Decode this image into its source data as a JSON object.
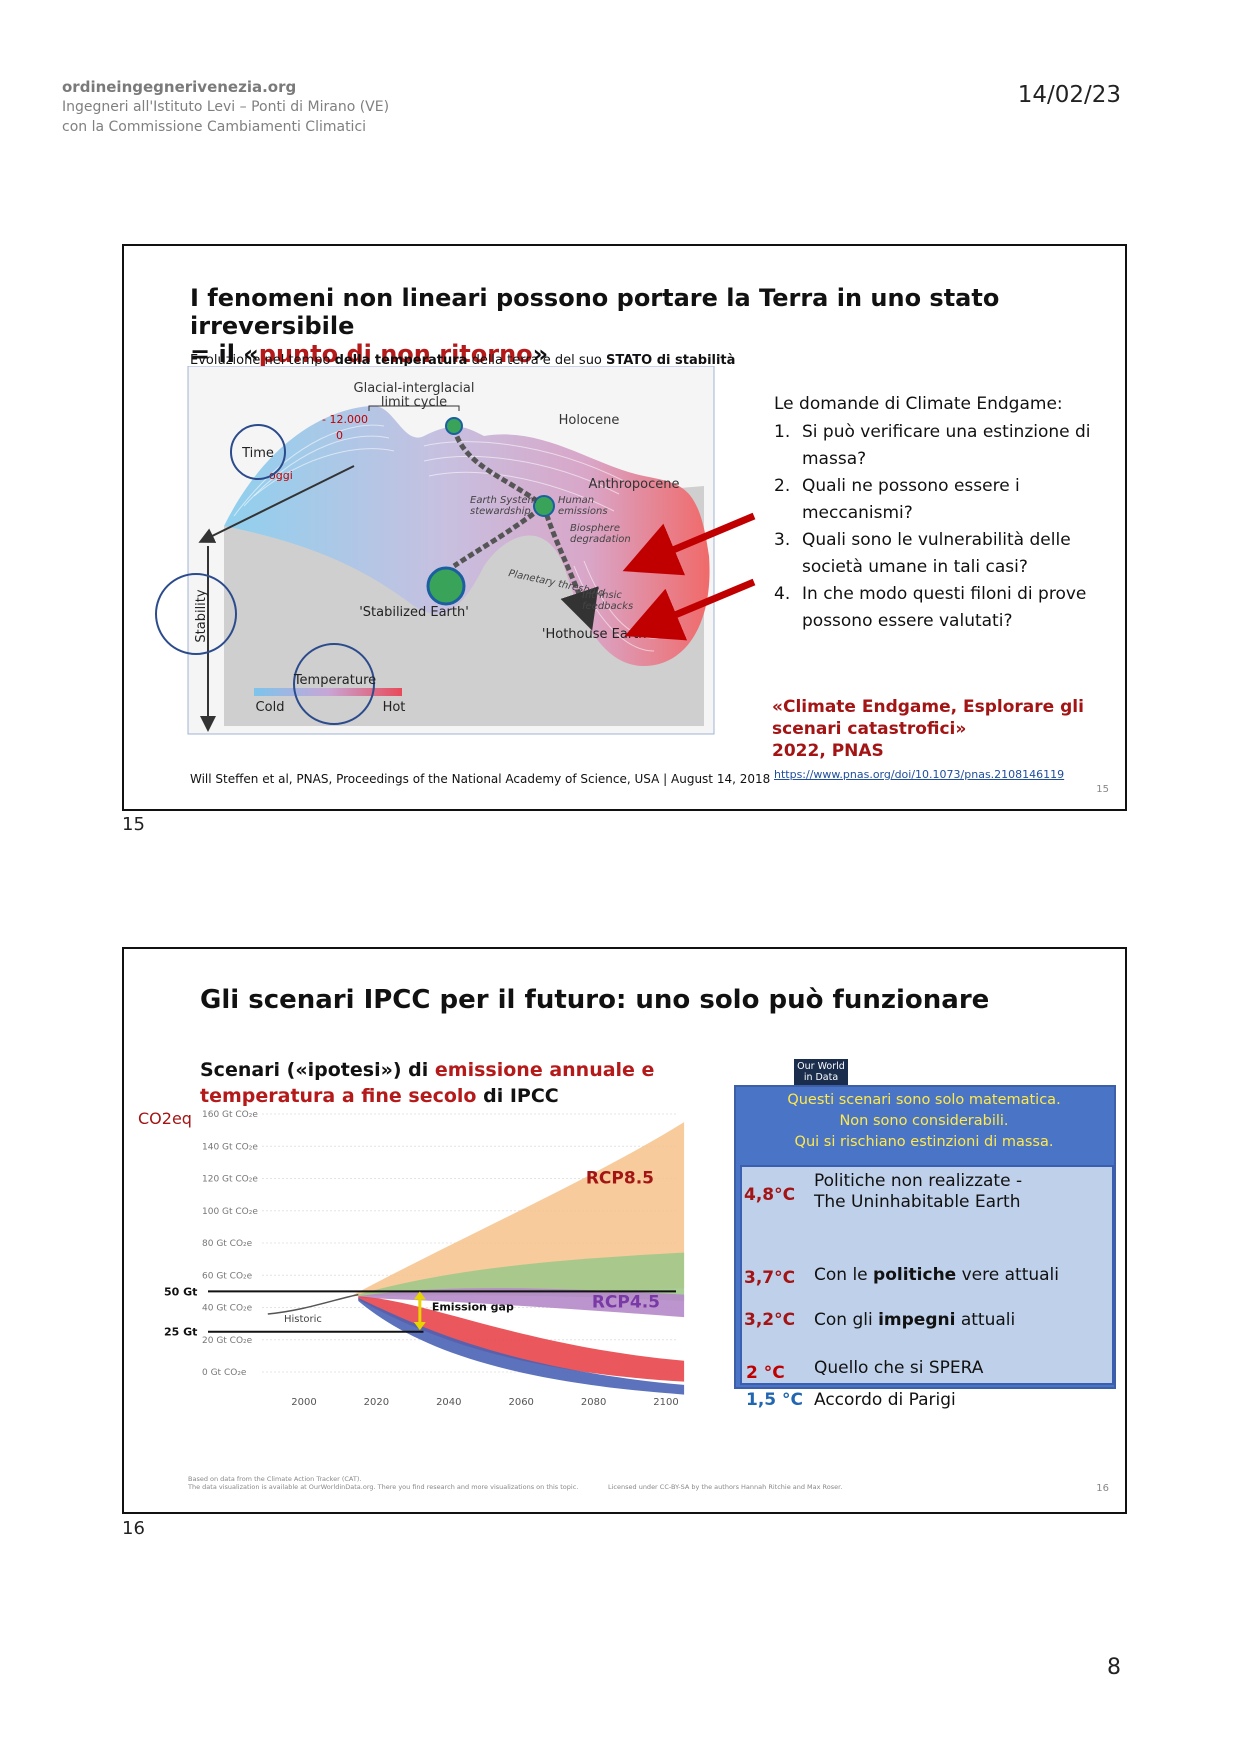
{
  "header": {
    "org": "ordineingegnerivenezia.org",
    "line1": "Ingegneri all'Istituto Levi – Ponti di Mirano (VE)",
    "line2": "con la Commissione Cambiamenti Climatici",
    "date": "14/02/23"
  },
  "slide1": {
    "title_a": "I fenomeni non lineari possono portare la Terra in uno stato irreversibile",
    "title_b_pre": "= il «",
    "title_b_red": "punto di non ritorno",
    "title_b_post": "»",
    "subtitle_a": "Evoluzione nel tempo ",
    "subtitle_b": "della temperatura",
    "subtitle_c": " della terra e del suo ",
    "subtitle_d": "STATO di stabilità",
    "figure": {
      "glacial": "Glacial-interglacial",
      "limit": "limit cycle",
      "holocene": "Holocene",
      "anthropocene": "Anthropocene",
      "minus12000": "- 12.000",
      "zero": "0",
      "oggi": "oggi",
      "time": "Time",
      "stability": "Stability",
      "temperature": "Temperature",
      "cold": "Cold",
      "hot": "Hot",
      "earth_system": "Earth System",
      "stewardship": "stewardship",
      "human": "Human",
      "emissions": "emissions",
      "biosphere": "Biosphere",
      "degradation": "degradation",
      "planetary": "Planetary threshold",
      "intrinsic": "Intrinsic",
      "feedbacks": "feedbacks",
      "stabilized": "'Stabilized Earth'",
      "hothouse": "'Hothouse Earth'"
    },
    "caption": "Will Steffen et al, PNAS, Proceedings of the National Academy of Science, USA | August 14, 2018",
    "questions_title": "Le domande di Climate Endgame:",
    "questions": [
      {
        "n": "1.",
        "text": "Si può verificare una estinzione di massa?"
      },
      {
        "n": "2.",
        "text": "Quali ne possono essere i meccanismi?"
      },
      {
        "n": "3.",
        "text": "Quali sono le vulnerabilità delle società umane in tali casi?"
      },
      {
        "n": "4.",
        "text": "In che modo questi filoni di prove possono essere valutati?"
      }
    ],
    "ref_1": "«Climate Endgame, Esplorare gli",
    "ref_2": "scenari catastrofici»",
    "ref_3": "2022, PNAS",
    "link": "https://www.pnas.org/doi/10.1073/pnas.2108146119",
    "slide_number": "15",
    "label": "15"
  },
  "slide2": {
    "title": "Gli scenari IPCC per il futuro: uno solo può funzionare",
    "sub_a": "Scenari («ipotesi») di ",
    "sub_b": "emissione annuale e",
    "sub_c": "temperatura a fine secolo",
    "sub_d": " di IPCC",
    "owid_a": "Our World",
    "owid_b": "in Data",
    "warning": [
      "Questi scenari sono solo matematica.",
      "Non sono considerabili.",
      "Qui si rischiano estinzioni di massa."
    ],
    "chart_data": {
      "type": "area",
      "ylabel": "CO2eq",
      "ylim": [
        0,
        160
      ],
      "x_ticks": [
        "2000",
        "2020",
        "2040",
        "2060",
        "2080",
        "2100"
      ],
      "y_ticks": [
        "160 Gt CO₂e",
        "140 Gt CO₂e",
        "120 Gt CO₂e",
        "100 Gt CO₂e",
        "80 Gt CO₂e",
        "60 Gt CO₂e",
        "40 Gt CO₂e",
        "20 Gt CO₂e",
        "0 Gt CO₂e"
      ],
      "ref_lines": [
        {
          "label": "50 Gt",
          "value": 50
        },
        {
          "label": "25 Gt",
          "value": 25
        }
      ],
      "historic_label": "Historic",
      "gap_label": "Emission gap",
      "series_labels": [
        "RCP8.5",
        "RCP4.5"
      ],
      "colors": {
        "rcp85": "#f6c28a",
        "policies": "#9fc98a",
        "pledges": "#b58ac9",
        "rcp26": "#e8454a",
        "paris": "#4a63b5"
      }
    },
    "temps": [
      {
        "t": "4,8°C",
        "desc": "Politiche non realizzate -",
        "desc2": "The Uninhabitable Earth"
      },
      {
        "t": "3,7°C",
        "desc_a": "Con le ",
        "desc_b": "politiche",
        "desc_c": " vere attuali"
      },
      {
        "t": "3,2°C",
        "desc_a": "Con gli ",
        "desc_b": "impegni",
        "desc_c": " attuali"
      },
      {
        "t": "2 °C",
        "desc": "Quello che si SPERA"
      },
      {
        "t": "1,5 °C",
        "desc": "Accordo di Parigi"
      }
    ],
    "footer_a": "Based on data from the Climate Action Tracker (CAT).",
    "footer_b": "The data visualization is available at OurWorldinData.org. There you find research and more visualizations on this topic.",
    "footer_c": "Licensed under CC-BY-SA by the authors Hannah Ritchie and Max Roser.",
    "slide_number": "16",
    "label": "16"
  },
  "page_number": "8"
}
